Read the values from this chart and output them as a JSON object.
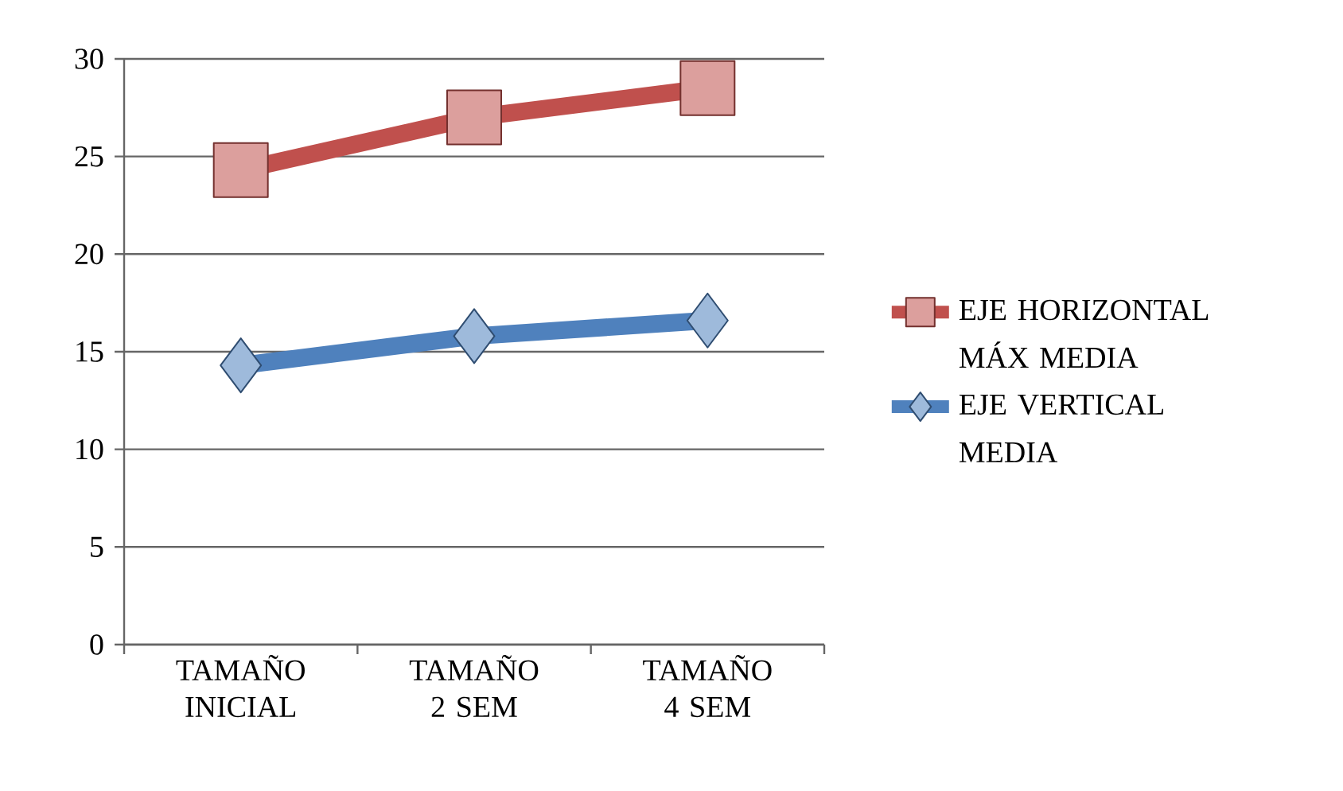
{
  "chart_data": {
    "type": "line",
    "categories": [
      "TAMAÑO INICIAL",
      "TAMAÑO 2 SEM",
      "TAMAÑO 4 SEM"
    ],
    "series": [
      {
        "name": "EJE HORIZONTAL MÁX MEDIA",
        "color": "#c0504d",
        "marker": "square",
        "values": [
          24.3,
          27.0,
          28.5
        ]
      },
      {
        "name": "EJE VERTICAL MEDIA",
        "color": "#4f81bd",
        "marker": "diamond",
        "values": [
          14.3,
          15.8,
          16.6
        ]
      }
    ],
    "ylim": [
      0,
      30
    ],
    "yticks": [
      0,
      5,
      10,
      15,
      20,
      25,
      30
    ],
    "grid": "y",
    "legend": "right"
  }
}
